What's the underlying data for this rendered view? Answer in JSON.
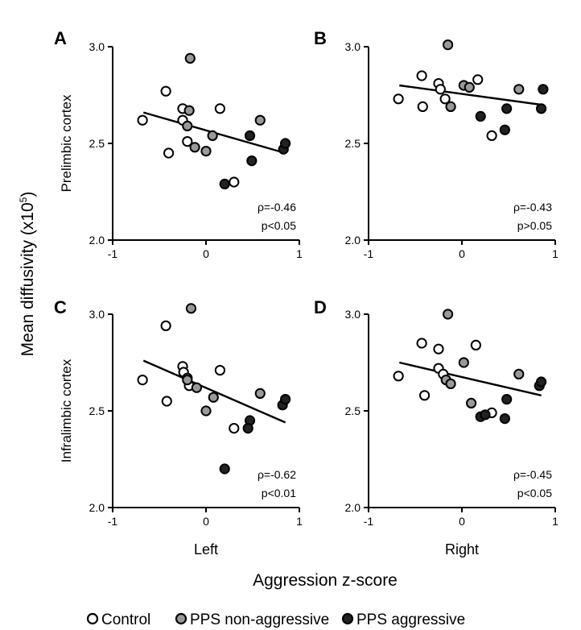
{
  "y_axis_title": "Mean diffusivity (x10",
  "y_axis_title_exp": "5",
  "y_axis_title_close": ")",
  "x_axis_title": "Aggression z-score",
  "legend": [
    {
      "label": "Control",
      "fill": "#ffffff"
    },
    {
      "label": "PPS non-aggressive",
      "fill": "#999999"
    },
    {
      "label": "PPS aggressive",
      "fill": "#222222"
    }
  ],
  "chart_data": [
    {
      "type": "scatter",
      "panel": "A",
      "region": "Prelimbic cortex",
      "side": "",
      "rho": "ρ=-0.46",
      "p": "p<0.05",
      "xlim": [
        -1,
        1
      ],
      "ylim": [
        2.0,
        3.0
      ],
      "xticks": [
        "-1",
        "0",
        "1"
      ],
      "yticks": [
        "2.0",
        "2.5",
        "3.0"
      ],
      "regression": [
        [
          -0.67,
          2.66
        ],
        [
          0.85,
          2.45
        ]
      ],
      "series": [
        {
          "name": "Control",
          "points": [
            [
              -0.68,
              2.62
            ],
            [
              -0.43,
              2.77
            ],
            [
              -0.4,
              2.45
            ],
            [
              -0.25,
              2.68
            ],
            [
              -0.25,
              2.62
            ],
            [
              -0.2,
              2.51
            ],
            [
              0.15,
              2.68
            ],
            [
              0.3,
              2.3
            ]
          ]
        },
        {
          "name": "PPS non-aggressive",
          "points": [
            [
              -0.17,
              2.94
            ],
            [
              -0.18,
              2.67
            ],
            [
              -0.2,
              2.59
            ],
            [
              -0.12,
              2.48
            ],
            [
              0.0,
              2.46
            ],
            [
              0.07,
              2.54
            ],
            [
              0.58,
              2.62
            ]
          ]
        },
        {
          "name": "PPS aggressive",
          "points": [
            [
              0.2,
              2.29
            ],
            [
              0.47,
              2.54
            ],
            [
              0.49,
              2.41
            ],
            [
              0.83,
              2.47
            ],
            [
              0.85,
              2.5
            ]
          ]
        }
      ]
    },
    {
      "type": "scatter",
      "panel": "B",
      "region": "",
      "side": "",
      "rho": "ρ=-0.43",
      "p": "p>0.05",
      "xlim": [
        -1,
        1
      ],
      "ylim": [
        2.0,
        3.0
      ],
      "xticks": [
        "-1",
        "0",
        "1"
      ],
      "yticks": [
        "2.0",
        "2.5",
        "3.0"
      ],
      "regression": [
        [
          -0.67,
          2.8
        ],
        [
          0.85,
          2.7
        ]
      ],
      "series": [
        {
          "name": "Control",
          "points": [
            [
              -0.68,
              2.73
            ],
            [
              -0.43,
              2.85
            ],
            [
              -0.42,
              2.69
            ],
            [
              -0.25,
              2.81
            ],
            [
              -0.23,
              2.78
            ],
            [
              -0.18,
              2.73
            ],
            [
              0.17,
              2.83
            ],
            [
              0.32,
              2.54
            ]
          ]
        },
        {
          "name": "PPS non-aggressive",
          "points": [
            [
              -0.15,
              3.01
            ],
            [
              -0.12,
              2.69
            ],
            [
              0.02,
              2.8
            ],
            [
              0.08,
              2.79
            ],
            [
              0.61,
              2.78
            ]
          ]
        },
        {
          "name": "PPS aggressive",
          "points": [
            [
              0.2,
              2.64
            ],
            [
              0.48,
              2.68
            ],
            [
              0.46,
              2.57
            ],
            [
              0.85,
              2.68
            ],
            [
              0.87,
              2.78
            ]
          ]
        }
      ]
    },
    {
      "type": "scatter",
      "panel": "C",
      "region": "Infralimbic cortex",
      "side": "Left",
      "rho": "ρ=-0.62",
      "p": "p<0.01",
      "xlim": [
        -1,
        1
      ],
      "ylim": [
        2.0,
        3.0
      ],
      "xticks": [
        "-1",
        "0",
        "1"
      ],
      "yticks": [
        "2.0",
        "2.5",
        "3.0"
      ],
      "regression": [
        [
          -0.67,
          2.76
        ],
        [
          0.85,
          2.44
        ]
      ],
      "series": [
        {
          "name": "Control",
          "points": [
            [
              -0.68,
              2.66
            ],
            [
              -0.43,
              2.94
            ],
            [
              -0.42,
              2.55
            ],
            [
              -0.25,
              2.73
            ],
            [
              -0.24,
              2.7
            ],
            [
              -0.2,
              2.67
            ],
            [
              -0.18,
              2.63
            ],
            [
              0.15,
              2.71
            ],
            [
              0.3,
              2.41
            ]
          ]
        },
        {
          "name": "PPS non-aggressive",
          "points": [
            [
              -0.16,
              3.03
            ],
            [
              -0.2,
              2.66
            ],
            [
              -0.1,
              2.62
            ],
            [
              0.0,
              2.5
            ],
            [
              0.08,
              2.57
            ],
            [
              0.58,
              2.59
            ]
          ]
        },
        {
          "name": "PPS aggressive",
          "points": [
            [
              0.2,
              2.2
            ],
            [
              0.47,
              2.45
            ],
            [
              0.45,
              2.41
            ],
            [
              0.82,
              2.53
            ],
            [
              0.85,
              2.56
            ]
          ]
        }
      ]
    },
    {
      "type": "scatter",
      "panel": "D",
      "region": "",
      "side": "Right",
      "rho": "ρ=-0.45",
      "p": "p<0.05",
      "xlim": [
        -1,
        1
      ],
      "ylim": [
        2.0,
        3.0
      ],
      "xticks": [
        "-1",
        "0",
        "1"
      ],
      "yticks": [
        "2.0",
        "2.5",
        "3.0"
      ],
      "regression": [
        [
          -0.67,
          2.75
        ],
        [
          0.85,
          2.58
        ]
      ],
      "series": [
        {
          "name": "Control",
          "points": [
            [
              -0.68,
              2.68
            ],
            [
              -0.43,
              2.85
            ],
            [
              -0.4,
              2.58
            ],
            [
              -0.25,
              2.82
            ],
            [
              -0.25,
              2.72
            ],
            [
              -0.2,
              2.69
            ],
            [
              0.15,
              2.84
            ],
            [
              0.32,
              2.49
            ]
          ]
        },
        {
          "name": "PPS non-aggressive",
          "points": [
            [
              -0.15,
              3.0
            ],
            [
              -0.17,
              2.66
            ],
            [
              -0.12,
              2.64
            ],
            [
              0.02,
              2.75
            ],
            [
              0.1,
              2.54
            ],
            [
              0.61,
              2.69
            ]
          ]
        },
        {
          "name": "PPS aggressive",
          "points": [
            [
              0.2,
              2.47
            ],
            [
              0.25,
              2.48
            ],
            [
              0.48,
              2.56
            ],
            [
              0.46,
              2.46
            ],
            [
              0.83,
              2.63
            ],
            [
              0.85,
              2.65
            ]
          ]
        }
      ]
    }
  ]
}
